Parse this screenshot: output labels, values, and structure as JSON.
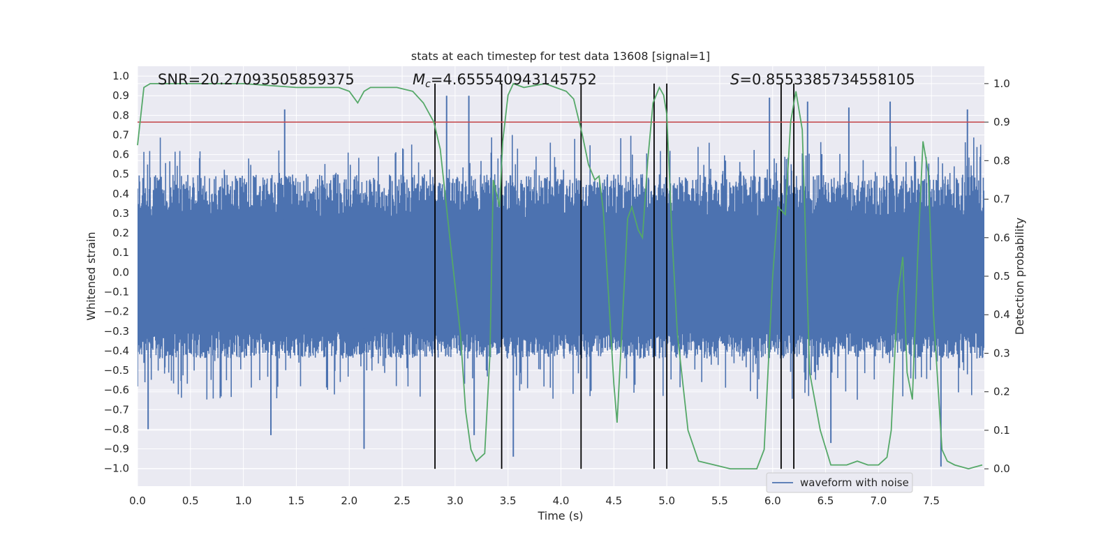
{
  "chart_data": {
    "type": "line",
    "title": "stats at each timestep for test data 13608 [signal=1]",
    "xlabel": "Time (s)",
    "ylabel": "Whitened strain",
    "ylabel_right": "Detection probability",
    "xlim": [
      0.0,
      8.0
    ],
    "ylim": [
      -1.09,
      1.05
    ],
    "ylim_right": [
      -0.045,
      1.045
    ],
    "x_ticks": [
      0.0,
      0.5,
      1.0,
      1.5,
      2.0,
      2.5,
      3.0,
      3.5,
      4.0,
      4.5,
      5.0,
      5.5,
      6.0,
      6.5,
      7.0,
      7.5
    ],
    "x_tick_labels": [
      "0.0",
      "0.5",
      "1.0",
      "1.5",
      "2.0",
      "2.5",
      "3.0",
      "3.5",
      "4.0",
      "4.5",
      "5.0",
      "5.5",
      "6.0",
      "6.5",
      "7.0",
      "7.5"
    ],
    "y_ticks": [
      1.0,
      0.9,
      0.8,
      0.7,
      0.6,
      0.5,
      0.4,
      0.3,
      0.2,
      0.1,
      0.0,
      -0.1,
      -0.2,
      -0.3,
      -0.4,
      -0.5,
      -0.6,
      -0.7,
      -0.8,
      -0.9,
      -1.0
    ],
    "y_tick_labels": [
      "1.0",
      "0.9",
      "0.8",
      "0.7",
      "0.6",
      "0.5",
      "0.4",
      "0.3",
      "0.2",
      "0.1",
      "0.0",
      "−0.1",
      "−0.2",
      "−0.3",
      "−0.4",
      "−0.5",
      "−0.6",
      "−0.7",
      "−0.8",
      "−0.9",
      "−1.0"
    ],
    "y_right_ticks": [
      1.0,
      0.9,
      0.8,
      0.7,
      0.6,
      0.5,
      0.4,
      0.3,
      0.2,
      0.1,
      0.0
    ],
    "y_right_tick_labels": [
      "1.0",
      "0.9",
      "0.8",
      "0.7",
      "0.6",
      "0.5",
      "0.4",
      "0.3",
      "0.2",
      "0.1",
      "0.0"
    ],
    "stats": {
      "snr": "SNR=20.27093505859375",
      "mc_symbol": "M",
      "mc_sub": "c",
      "mc_value": "=4.655540943145752",
      "s_symbol": "S",
      "s_value": "=0.8553385734558105"
    },
    "threshold": 0.9,
    "detection_lines": [
      2.81,
      3.44,
      4.19,
      4.88,
      5.0,
      6.08,
      6.2
    ],
    "waveform": {
      "name": "waveform with noise",
      "typical_range": [
        -0.4,
        0.5
      ],
      "extremes": [
        {
          "x": 0.1,
          "y": -0.8
        },
        {
          "x": 1.39,
          "y": 0.83
        },
        {
          "x": 1.26,
          "y": -0.83
        },
        {
          "x": 2.14,
          "y": -0.9
        },
        {
          "x": 2.92,
          "y": 0.9
        },
        {
          "x": 3.13,
          "y": 0.9
        },
        {
          "x": 3.18,
          "y": -0.83
        },
        {
          "x": 3.55,
          "y": -0.94
        },
        {
          "x": 5.97,
          "y": 0.89
        },
        {
          "x": 6.33,
          "y": 0.87
        },
        {
          "x": 6.55,
          "y": -0.87
        },
        {
          "x": 6.72,
          "y": 0.84
        },
        {
          "x": 7.11,
          "y": 0.87
        },
        {
          "x": 7.59,
          "y": -0.99
        },
        {
          "x": 7.84,
          "y": 0.83
        }
      ]
    },
    "probability": {
      "name": "detection probability",
      "x": [
        0.0,
        0.06,
        0.12,
        0.3,
        0.6,
        1.0,
        1.5,
        1.9,
        2.0,
        2.08,
        2.14,
        2.2,
        2.45,
        2.6,
        2.7,
        2.8,
        2.86,
        2.95,
        3.05,
        3.1,
        3.15,
        3.2,
        3.28,
        3.33,
        3.36,
        3.42,
        3.45,
        3.5,
        3.55,
        3.65,
        3.85,
        3.95,
        4.05,
        4.12,
        4.2,
        4.26,
        4.32,
        4.36,
        4.4,
        4.45,
        4.5,
        4.53,
        4.58,
        4.63,
        4.67,
        4.73,
        4.77,
        4.82,
        4.87,
        4.93,
        4.97,
        5.0,
        5.05,
        5.1,
        5.2,
        5.3,
        5.6,
        5.78,
        5.85,
        5.92,
        6.0,
        6.05,
        6.12,
        6.17,
        6.22,
        6.28,
        6.35,
        6.45,
        6.55,
        6.7,
        6.8,
        6.9,
        7.0,
        7.08,
        7.12,
        7.18,
        7.23,
        7.27,
        7.32,
        7.37,
        7.42,
        7.47,
        7.52,
        7.6,
        7.65,
        7.72,
        7.85,
        7.98
      ],
      "y": [
        0.84,
        0.99,
        1.0,
        1.0,
        1.0,
        1.0,
        0.99,
        0.99,
        0.98,
        0.95,
        0.98,
        0.99,
        0.99,
        0.98,
        0.95,
        0.9,
        0.83,
        0.6,
        0.35,
        0.15,
        0.05,
        0.02,
        0.04,
        0.3,
        0.75,
        0.68,
        0.85,
        0.97,
        1.0,
        0.99,
        1.0,
        0.99,
        0.98,
        0.96,
        0.87,
        0.79,
        0.75,
        0.76,
        0.67,
        0.45,
        0.22,
        0.12,
        0.38,
        0.65,
        0.68,
        0.62,
        0.6,
        0.8,
        0.95,
        0.99,
        0.97,
        0.92,
        0.6,
        0.35,
        0.1,
        0.02,
        0.0,
        0.0,
        0.0,
        0.05,
        0.5,
        0.68,
        0.66,
        0.9,
        0.98,
        0.88,
        0.25,
        0.1,
        0.01,
        0.01,
        0.02,
        0.01,
        0.01,
        0.03,
        0.1,
        0.45,
        0.55,
        0.25,
        0.18,
        0.55,
        0.85,
        0.77,
        0.4,
        0.05,
        0.02,
        0.01,
        0.0,
        0.01
      ]
    },
    "legend": {
      "entries": [
        "waveform with noise"
      ],
      "location": "lower-right"
    },
    "colors": {
      "background": "#eaeaf2",
      "grid": "#ffffff",
      "waveform": "#4c72b0",
      "probability": "#55a868",
      "threshold": "#c44e52",
      "detection_line": "#000000"
    }
  }
}
